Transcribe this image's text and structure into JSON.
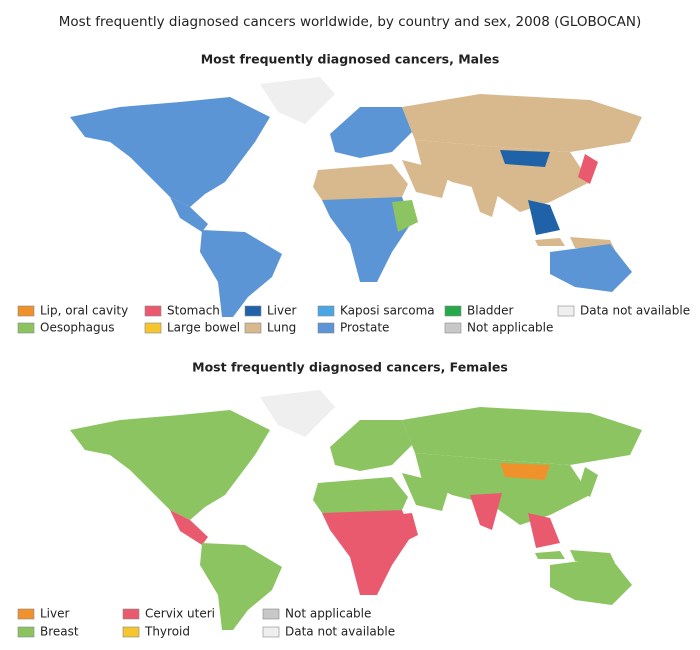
{
  "title": "Most frequently diagnosed cancers worldwide, by country and sex, 2008 (GLOBOCAN)",
  "maps": [
    {
      "title": "Most frequently diagnosed cancers, Males",
      "legend": [
        {
          "label": "Lip, oral cavity",
          "color": "#f0922b"
        },
        {
          "label": "Oesophagus",
          "color": "#8dc462"
        },
        {
          "label": "Stomach",
          "color": "#ea5a6f"
        },
        {
          "label": "Large bowel",
          "color": "#f7c62f"
        },
        {
          "label": "Liver",
          "color": "#1f62a8"
        },
        {
          "label": "Lung",
          "color": "#d8b98d"
        },
        {
          "label": "Kaposi sarcoma",
          "color": "#4aa7e3"
        },
        {
          "label": "Prostate",
          "color": "#5b95d5"
        },
        {
          "label": "Bladder",
          "color": "#27a84a"
        },
        {
          "label": "Not applicable",
          "color": "#c8c8c8"
        },
        {
          "label": "Data not available",
          "color": "#efefef"
        }
      ]
    },
    {
      "title": "Most frequently diagnosed cancers, Females",
      "legend": [
        {
          "label": "Liver",
          "color": "#f0922b"
        },
        {
          "label": "Breast",
          "color": "#8dc462"
        },
        {
          "label": "Cervix uteri",
          "color": "#ea5a6f"
        },
        {
          "label": "Thyroid",
          "color": "#f7c62f"
        },
        {
          "label": "Not applicable",
          "color": "#c8c8c8"
        },
        {
          "label": "Data not available",
          "color": "#efefef"
        }
      ]
    }
  ]
}
